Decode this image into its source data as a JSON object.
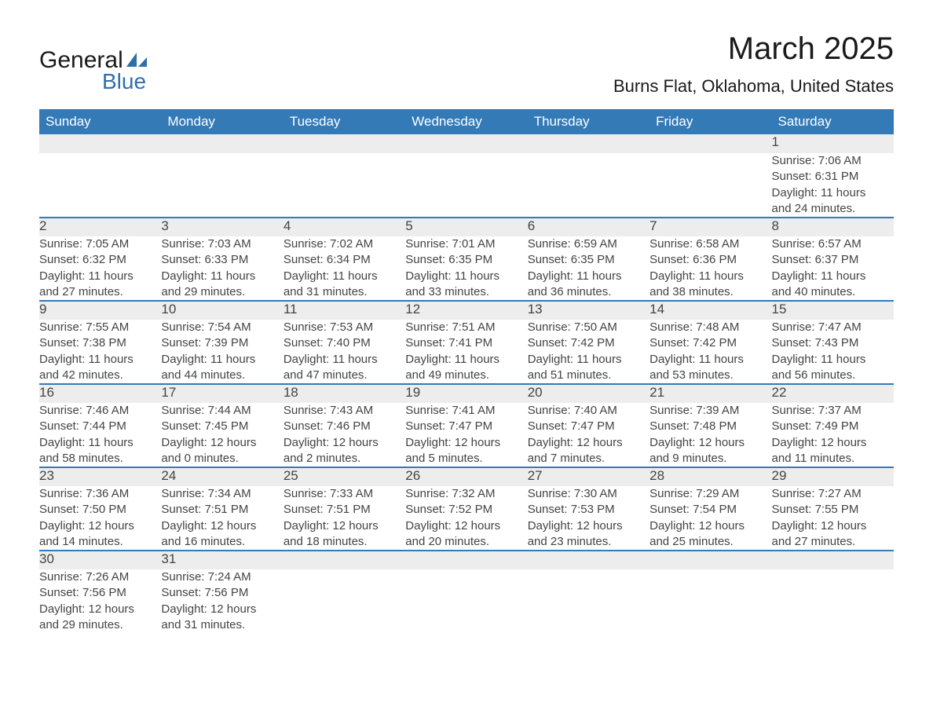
{
  "logo": {
    "text1": "General",
    "text2": "Blue",
    "sail_color": "#2f6fa9"
  },
  "title": "March 2025",
  "location": "Burns Flat, Oklahoma, United States",
  "colors": {
    "header_bg": "#337ab7",
    "header_text": "#ffffff",
    "daynum_bg": "#ededed",
    "divider": "#337ab7",
    "text": "#444444",
    "background": "#ffffff"
  },
  "fonts": {
    "title_size_pt": 30,
    "location_size_pt": 17,
    "header_size_pt": 13,
    "body_size_pt": 11
  },
  "weekdays": [
    "Sunday",
    "Monday",
    "Tuesday",
    "Wednesday",
    "Thursday",
    "Friday",
    "Saturday"
  ],
  "weeks": [
    [
      null,
      null,
      null,
      null,
      null,
      null,
      {
        "n": "1",
        "sr": "Sunrise: 7:06 AM",
        "ss": "Sunset: 6:31 PM",
        "d1": "Daylight: 11 hours",
        "d2": "and 24 minutes."
      }
    ],
    [
      {
        "n": "2",
        "sr": "Sunrise: 7:05 AM",
        "ss": "Sunset: 6:32 PM",
        "d1": "Daylight: 11 hours",
        "d2": "and 27 minutes."
      },
      {
        "n": "3",
        "sr": "Sunrise: 7:03 AM",
        "ss": "Sunset: 6:33 PM",
        "d1": "Daylight: 11 hours",
        "d2": "and 29 minutes."
      },
      {
        "n": "4",
        "sr": "Sunrise: 7:02 AM",
        "ss": "Sunset: 6:34 PM",
        "d1": "Daylight: 11 hours",
        "d2": "and 31 minutes."
      },
      {
        "n": "5",
        "sr": "Sunrise: 7:01 AM",
        "ss": "Sunset: 6:35 PM",
        "d1": "Daylight: 11 hours",
        "d2": "and 33 minutes."
      },
      {
        "n": "6",
        "sr": "Sunrise: 6:59 AM",
        "ss": "Sunset: 6:35 PM",
        "d1": "Daylight: 11 hours",
        "d2": "and 36 minutes."
      },
      {
        "n": "7",
        "sr": "Sunrise: 6:58 AM",
        "ss": "Sunset: 6:36 PM",
        "d1": "Daylight: 11 hours",
        "d2": "and 38 minutes."
      },
      {
        "n": "8",
        "sr": "Sunrise: 6:57 AM",
        "ss": "Sunset: 6:37 PM",
        "d1": "Daylight: 11 hours",
        "d2": "and 40 minutes."
      }
    ],
    [
      {
        "n": "9",
        "sr": "Sunrise: 7:55 AM",
        "ss": "Sunset: 7:38 PM",
        "d1": "Daylight: 11 hours",
        "d2": "and 42 minutes."
      },
      {
        "n": "10",
        "sr": "Sunrise: 7:54 AM",
        "ss": "Sunset: 7:39 PM",
        "d1": "Daylight: 11 hours",
        "d2": "and 44 minutes."
      },
      {
        "n": "11",
        "sr": "Sunrise: 7:53 AM",
        "ss": "Sunset: 7:40 PM",
        "d1": "Daylight: 11 hours",
        "d2": "and 47 minutes."
      },
      {
        "n": "12",
        "sr": "Sunrise: 7:51 AM",
        "ss": "Sunset: 7:41 PM",
        "d1": "Daylight: 11 hours",
        "d2": "and 49 minutes."
      },
      {
        "n": "13",
        "sr": "Sunrise: 7:50 AM",
        "ss": "Sunset: 7:42 PM",
        "d1": "Daylight: 11 hours",
        "d2": "and 51 minutes."
      },
      {
        "n": "14",
        "sr": "Sunrise: 7:48 AM",
        "ss": "Sunset: 7:42 PM",
        "d1": "Daylight: 11 hours",
        "d2": "and 53 minutes."
      },
      {
        "n": "15",
        "sr": "Sunrise: 7:47 AM",
        "ss": "Sunset: 7:43 PM",
        "d1": "Daylight: 11 hours",
        "d2": "and 56 minutes."
      }
    ],
    [
      {
        "n": "16",
        "sr": "Sunrise: 7:46 AM",
        "ss": "Sunset: 7:44 PM",
        "d1": "Daylight: 11 hours",
        "d2": "and 58 minutes."
      },
      {
        "n": "17",
        "sr": "Sunrise: 7:44 AM",
        "ss": "Sunset: 7:45 PM",
        "d1": "Daylight: 12 hours",
        "d2": "and 0 minutes."
      },
      {
        "n": "18",
        "sr": "Sunrise: 7:43 AM",
        "ss": "Sunset: 7:46 PM",
        "d1": "Daylight: 12 hours",
        "d2": "and 2 minutes."
      },
      {
        "n": "19",
        "sr": "Sunrise: 7:41 AM",
        "ss": "Sunset: 7:47 PM",
        "d1": "Daylight: 12 hours",
        "d2": "and 5 minutes."
      },
      {
        "n": "20",
        "sr": "Sunrise: 7:40 AM",
        "ss": "Sunset: 7:47 PM",
        "d1": "Daylight: 12 hours",
        "d2": "and 7 minutes."
      },
      {
        "n": "21",
        "sr": "Sunrise: 7:39 AM",
        "ss": "Sunset: 7:48 PM",
        "d1": "Daylight: 12 hours",
        "d2": "and 9 minutes."
      },
      {
        "n": "22",
        "sr": "Sunrise: 7:37 AM",
        "ss": "Sunset: 7:49 PM",
        "d1": "Daylight: 12 hours",
        "d2": "and 11 minutes."
      }
    ],
    [
      {
        "n": "23",
        "sr": "Sunrise: 7:36 AM",
        "ss": "Sunset: 7:50 PM",
        "d1": "Daylight: 12 hours",
        "d2": "and 14 minutes."
      },
      {
        "n": "24",
        "sr": "Sunrise: 7:34 AM",
        "ss": "Sunset: 7:51 PM",
        "d1": "Daylight: 12 hours",
        "d2": "and 16 minutes."
      },
      {
        "n": "25",
        "sr": "Sunrise: 7:33 AM",
        "ss": "Sunset: 7:51 PM",
        "d1": "Daylight: 12 hours",
        "d2": "and 18 minutes."
      },
      {
        "n": "26",
        "sr": "Sunrise: 7:32 AM",
        "ss": "Sunset: 7:52 PM",
        "d1": "Daylight: 12 hours",
        "d2": "and 20 minutes."
      },
      {
        "n": "27",
        "sr": "Sunrise: 7:30 AM",
        "ss": "Sunset: 7:53 PM",
        "d1": "Daylight: 12 hours",
        "d2": "and 23 minutes."
      },
      {
        "n": "28",
        "sr": "Sunrise: 7:29 AM",
        "ss": "Sunset: 7:54 PM",
        "d1": "Daylight: 12 hours",
        "d2": "and 25 minutes."
      },
      {
        "n": "29",
        "sr": "Sunrise: 7:27 AM",
        "ss": "Sunset: 7:55 PM",
        "d1": "Daylight: 12 hours",
        "d2": "and 27 minutes."
      }
    ],
    [
      {
        "n": "30",
        "sr": "Sunrise: 7:26 AM",
        "ss": "Sunset: 7:56 PM",
        "d1": "Daylight: 12 hours",
        "d2": "and 29 minutes."
      },
      {
        "n": "31",
        "sr": "Sunrise: 7:24 AM",
        "ss": "Sunset: 7:56 PM",
        "d1": "Daylight: 12 hours",
        "d2": "and 31 minutes."
      },
      null,
      null,
      null,
      null,
      null
    ]
  ]
}
